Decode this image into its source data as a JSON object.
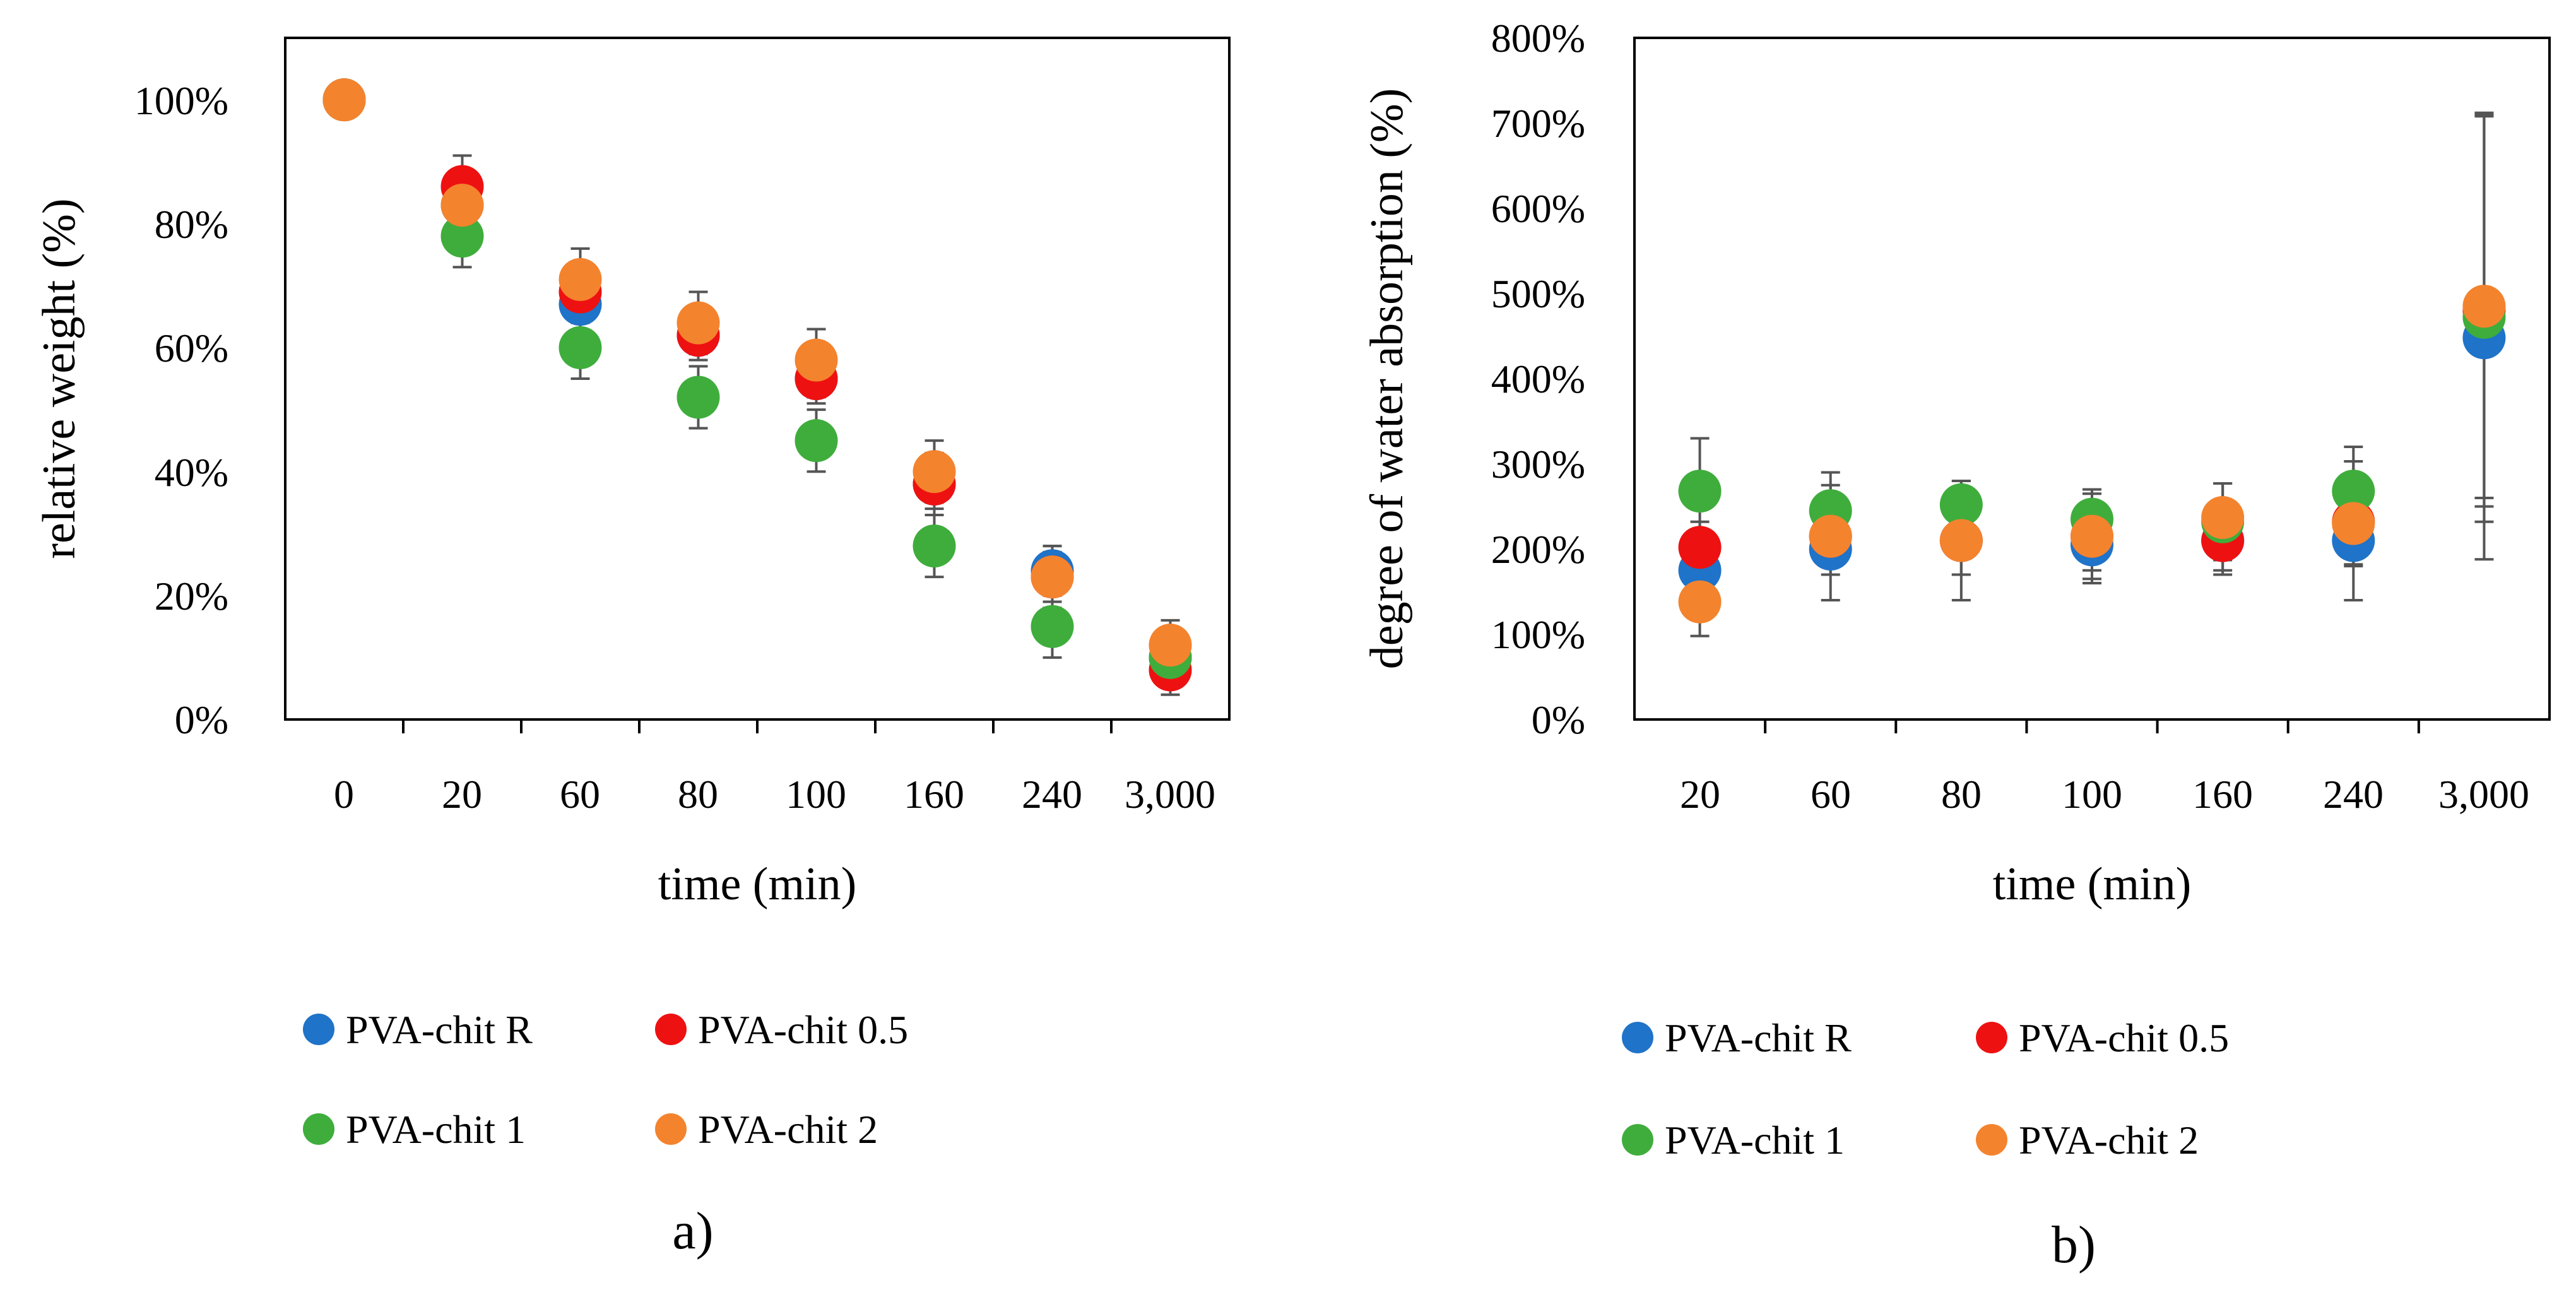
{
  "series_colors": {
    "PVA-chit R": "#1f73c8",
    "PVA-chit 0.5": "#ee1111",
    "PVA-chit 1": "#3fad3c",
    "PVA-chit 2": "#f4832e"
  },
  "chart_data": [
    {
      "type": "scatter",
      "panel_label": "a)",
      "xlabel": "time (min)",
      "ylabel": "relative weight (%)",
      "categories": [
        "0",
        "20",
        "60",
        "80",
        "100",
        "160",
        "240",
        "3,000"
      ],
      "ylim": [
        0,
        110
      ],
      "yticks": [
        0,
        20,
        40,
        60,
        80,
        100
      ],
      "ytick_labels": [
        "0%",
        "20%",
        "40%",
        "60%",
        "80%",
        "100%"
      ],
      "legend": {
        "position": "bottom",
        "entries": [
          "PVA-chit R",
          "PVA-chit 0.5",
          "PVA-chit 1",
          "PVA-chit 2"
        ]
      },
      "series": [
        {
          "name": "PVA-chit R",
          "values": [
            100,
            83,
            67,
            62,
            55,
            38,
            24,
            10
          ],
          "errors": [
            0,
            3,
            3,
            3,
            3,
            4,
            4,
            3
          ]
        },
        {
          "name": "PVA-chit 0.5",
          "values": [
            100,
            86,
            69,
            62,
            55,
            38,
            23,
            8
          ],
          "errors": [
            0,
            5,
            4,
            4,
            4,
            5,
            4,
            4
          ]
        },
        {
          "name": "PVA-chit 1",
          "values": [
            100,
            78,
            60,
            52,
            45,
            28,
            15,
            10
          ],
          "errors": [
            0,
            5,
            5,
            5,
            5,
            5,
            5,
            4
          ]
        },
        {
          "name": "PVA-chit 2",
          "values": [
            100,
            83,
            71,
            64,
            58,
            40,
            23,
            12
          ],
          "errors": [
            0,
            3,
            5,
            5,
            5,
            5,
            5,
            4
          ]
        }
      ]
    },
    {
      "type": "scatter",
      "panel_label": "b)",
      "xlabel": "time (min)",
      "ylabel": "degree of water absorption (%)",
      "categories": [
        "20",
        "60",
        "80",
        "100",
        "160",
        "240",
        "3,000"
      ],
      "ylim": [
        0,
        800
      ],
      "yticks": [
        0,
        100,
        200,
        300,
        400,
        500,
        600,
        700,
        800
      ],
      "ytick_labels": [
        "0%",
        "100%",
        "200%",
        "300%",
        "400%",
        "500%",
        "600%",
        "700%",
        "800%"
      ],
      "legend": {
        "position": "bottom",
        "entries": [
          "PVA-chit R",
          "PVA-chit 0.5",
          "PVA-chit 1",
          "PVA-chit 2"
        ]
      },
      "series": [
        {
          "name": "PVA-chit R",
          "values": [
            175,
            200,
            210,
            205,
            210,
            210,
            448
          ],
          "errors": [
            30,
            30,
            40,
            45,
            40,
            30,
            260
          ]
        },
        {
          "name": "PVA-chit 0.5",
          "values": [
            202,
            215,
            210,
            215,
            210,
            232,
            480
          ],
          "errors": [
            30,
            30,
            40,
            40,
            35,
            50,
            230
          ]
        },
        {
          "name": "PVA-chit 1",
          "values": [
            268,
            245,
            252,
            235,
            232,
            268,
            472
          ],
          "errors": [
            62,
            30,
            28,
            35,
            45,
            35,
            240
          ]
        },
        {
          "name": "PVA-chit 2",
          "values": [
            138,
            215,
            210,
            215,
            237,
            230,
            485
          ],
          "errors": [
            40,
            75,
            70,
            50,
            40,
            90,
            225
          ]
        }
      ]
    }
  ]
}
